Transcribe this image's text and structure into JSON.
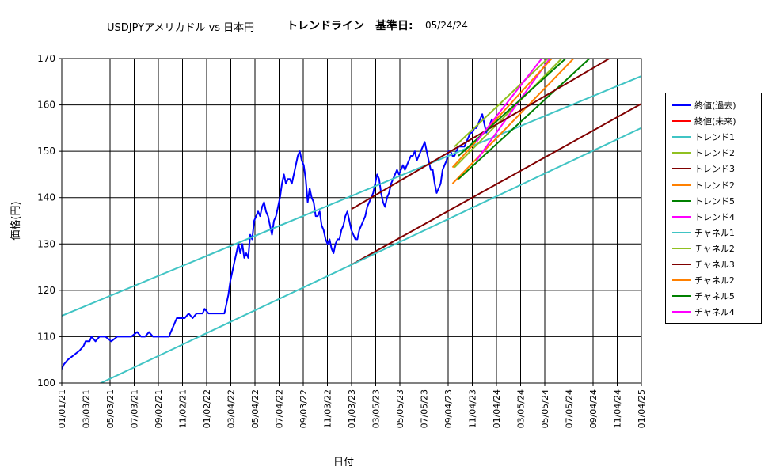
{
  "header": {
    "title_main": "USDJPYアメリカドル vs 日本円",
    "title_trend": "トレンドライン　基準日:",
    "title_date": "05/24/24"
  },
  "chart_data": {
    "type": "line",
    "xlabel": "日付",
    "ylabel": "価格(円)",
    "ylim": [
      100,
      170
    ],
    "yticks": [
      100,
      110,
      120,
      130,
      140,
      150,
      160,
      170
    ],
    "xlim": [
      "2021-01-01",
      "2025-01-01"
    ],
    "xtick_labels": [
      "01/01/21",
      "03/03/21",
      "05/03/21",
      "07/03/21",
      "09/02/21",
      "11/02/21",
      "01/02/22",
      "03/04/22",
      "05/04/22",
      "07/04/22",
      "09/03/22",
      "11/03/22",
      "01/03/23",
      "03/05/23",
      "05/05/23",
      "07/05/23",
      "09/04/23",
      "11/04/23",
      "01/04/24",
      "03/05/24",
      "05/05/24",
      "07/05/24",
      "09/04/24",
      "11/04/24",
      "01/04/25"
    ],
    "grid": true,
    "legend_position": "right",
    "series": [
      {
        "name": "終値(過去)",
        "color": "#0000ff",
        "width": 2,
        "points": [
          [
            0,
            103
          ],
          [
            5,
            104
          ],
          [
            15,
            105
          ],
          [
            30,
            106
          ],
          [
            45,
            107
          ],
          [
            55,
            108
          ],
          [
            60,
            109
          ],
          [
            70,
            109
          ],
          [
            75,
            110
          ],
          [
            85,
            109
          ],
          [
            95,
            110
          ],
          [
            110,
            110
          ],
          [
            125,
            109
          ],
          [
            140,
            110
          ],
          [
            150,
            110
          ],
          [
            165,
            110
          ],
          [
            175,
            110
          ],
          [
            190,
            111
          ],
          [
            200,
            110
          ],
          [
            210,
            110
          ],
          [
            220,
            111
          ],
          [
            230,
            110
          ],
          [
            240,
            110
          ],
          [
            250,
            110
          ],
          [
            260,
            110
          ],
          [
            270,
            110
          ],
          [
            280,
            112
          ],
          [
            290,
            114
          ],
          [
            300,
            114
          ],
          [
            310,
            114
          ],
          [
            320,
            115
          ],
          [
            330,
            114
          ],
          [
            340,
            115
          ],
          [
            345,
            115
          ],
          [
            355,
            115
          ],
          [
            360,
            116
          ],
          [
            370,
            115
          ],
          [
            380,
            115
          ],
          [
            390,
            115
          ],
          [
            400,
            115
          ],
          [
            410,
            115
          ],
          [
            415,
            117
          ],
          [
            420,
            119
          ],
          [
            425,
            122
          ],
          [
            430,
            124
          ],
          [
            435,
            126
          ],
          [
            440,
            128
          ],
          [
            445,
            130
          ],
          [
            450,
            128
          ],
          [
            455,
            130
          ],
          [
            460,
            127
          ],
          [
            465,
            128
          ],
          [
            470,
            127
          ],
          [
            475,
            132
          ],
          [
            480,
            131
          ],
          [
            485,
            135
          ],
          [
            490,
            136
          ],
          [
            495,
            137
          ],
          [
            500,
            136
          ],
          [
            505,
            138
          ],
          [
            510,
            139
          ],
          [
            515,
            137
          ],
          [
            520,
            136
          ],
          [
            525,
            134
          ],
          [
            530,
            132
          ],
          [
            535,
            135
          ],
          [
            540,
            136
          ],
          [
            545,
            138
          ],
          [
            550,
            140
          ],
          [
            555,
            143
          ],
          [
            560,
            145
          ],
          [
            565,
            143
          ],
          [
            570,
            144
          ],
          [
            575,
            144
          ],
          [
            580,
            143
          ],
          [
            585,
            145
          ],
          [
            590,
            147
          ],
          [
            595,
            149
          ],
          [
            600,
            150
          ],
          [
            605,
            148
          ],
          [
            610,
            147
          ],
          [
            615,
            144
          ],
          [
            620,
            139
          ],
          [
            625,
            142
          ],
          [
            630,
            140
          ],
          [
            635,
            139
          ],
          [
            640,
            136
          ],
          [
            645,
            136
          ],
          [
            650,
            137
          ],
          [
            655,
            134
          ],
          [
            660,
            133
          ],
          [
            665,
            131
          ],
          [
            670,
            130
          ],
          [
            675,
            131
          ],
          [
            680,
            129
          ],
          [
            685,
            128
          ],
          [
            690,
            130
          ],
          [
            695,
            131
          ],
          [
            700,
            131
          ],
          [
            705,
            133
          ],
          [
            710,
            134
          ],
          [
            715,
            136
          ],
          [
            720,
            137
          ],
          [
            725,
            135
          ],
          [
            730,
            133
          ],
          [
            735,
            132
          ],
          [
            740,
            131
          ],
          [
            745,
            131
          ],
          [
            750,
            133
          ],
          [
            755,
            134
          ],
          [
            760,
            135
          ],
          [
            765,
            136
          ],
          [
            770,
            138
          ],
          [
            775,
            139
          ],
          [
            780,
            140
          ],
          [
            785,
            141
          ],
          [
            790,
            143
          ],
          [
            795,
            145
          ],
          [
            800,
            144
          ],
          [
            805,
            141
          ],
          [
            810,
            139
          ],
          [
            815,
            138
          ],
          [
            820,
            140
          ],
          [
            825,
            141
          ],
          [
            830,
            143
          ],
          [
            835,
            144
          ],
          [
            840,
            145
          ],
          [
            845,
            146
          ],
          [
            850,
            145
          ],
          [
            855,
            146
          ],
          [
            860,
            147
          ],
          [
            865,
            146
          ],
          [
            870,
            147
          ],
          [
            875,
            148
          ],
          [
            880,
            149
          ],
          [
            885,
            149
          ],
          [
            890,
            150
          ],
          [
            895,
            148
          ],
          [
            900,
            149
          ],
          [
            905,
            150
          ],
          [
            910,
            151
          ],
          [
            915,
            152
          ],
          [
            920,
            150
          ],
          [
            925,
            148
          ],
          [
            930,
            146
          ],
          [
            935,
            146
          ],
          [
            940,
            143
          ],
          [
            945,
            141
          ],
          [
            950,
            142
          ],
          [
            955,
            143
          ],
          [
            960,
            146
          ],
          [
            965,
            147
          ],
          [
            970,
            148
          ],
          [
            975,
            150
          ],
          [
            980,
            150
          ],
          [
            985,
            149
          ],
          [
            990,
            149
          ],
          [
            995,
            150
          ],
          [
            1000,
            151
          ],
          [
            1005,
            151
          ],
          [
            1010,
            151
          ],
          [
            1015,
            151
          ],
          [
            1020,
            152
          ],
          [
            1025,
            153
          ],
          [
            1030,
            154
          ],
          [
            1035,
            154
          ],
          [
            1040,
            155
          ],
          [
            1045,
            155
          ],
          [
            1050,
            156
          ],
          [
            1055,
            157
          ],
          [
            1060,
            158
          ],
          [
            1065,
            156
          ],
          [
            1070,
            154
          ],
          [
            1075,
            155
          ],
          [
            1080,
            156
          ],
          [
            1085,
            157
          ]
        ]
      },
      {
        "name": "終値(未来)",
        "color": "#ff0000",
        "width": 1,
        "points": []
      },
      {
        "name": "トレンド1",
        "color": "#40c4c4",
        "width": 2,
        "points": [
          [
            0,
            114.5
          ],
          [
            1460,
            166.2
          ]
        ]
      },
      {
        "name": "トレンド2",
        "color": "#90c020",
        "width": 2,
        "points": [
          [
            990,
            146.5
          ],
          [
            1260,
            170
          ]
        ]
      },
      {
        "name": "トレンド3",
        "color": "#800000",
        "width": 2,
        "points": [
          [
            730,
            125.5
          ],
          [
            1460,
            160.2
          ]
        ]
      },
      {
        "name": "トレンド2",
        "color": "#ff8000",
        "width": 2,
        "points": [
          [
            985,
            143
          ],
          [
            1290,
            170
          ]
        ]
      },
      {
        "name": "トレンド5",
        "color": "#008000",
        "width": 2,
        "points": [
          [
            1000,
            144
          ],
          [
            1330,
            170
          ]
        ]
      },
      {
        "name": "トレンド4",
        "color": "#ff00ff",
        "width": 2,
        "points": [
          [
            1045,
            148
          ],
          [
            1230,
            170
          ]
        ]
      },
      {
        "name": "チャネル1",
        "color": "#40c4c4",
        "width": 2,
        "points": [
          [
            0,
            96
          ],
          [
            1460,
            155
          ]
        ]
      },
      {
        "name": "チャネル2",
        "color": "#90c020",
        "width": 2,
        "points": [
          [
            990,
            151
          ],
          [
            1225,
            170
          ]
        ]
      },
      {
        "name": "チャネル3",
        "color": "#800000",
        "width": 2,
        "points": [
          [
            730,
            137.5
          ],
          [
            1380,
            170
          ]
        ]
      },
      {
        "name": "チャネル2",
        "color": "#ff8000",
        "width": 2,
        "points": [
          [
            985,
            146.5
          ],
          [
            1235,
            170
          ]
        ]
      },
      {
        "name": "チャネル5",
        "color": "#008000",
        "width": 2,
        "points": [
          [
            1000,
            149
          ],
          [
            1270,
            170
          ]
        ]
      },
      {
        "name": "チャネル4",
        "color": "#ff00ff",
        "width": 2,
        "points": [
          [
            1045,
            152
          ],
          [
            1210,
            170
          ]
        ]
      }
    ]
  }
}
